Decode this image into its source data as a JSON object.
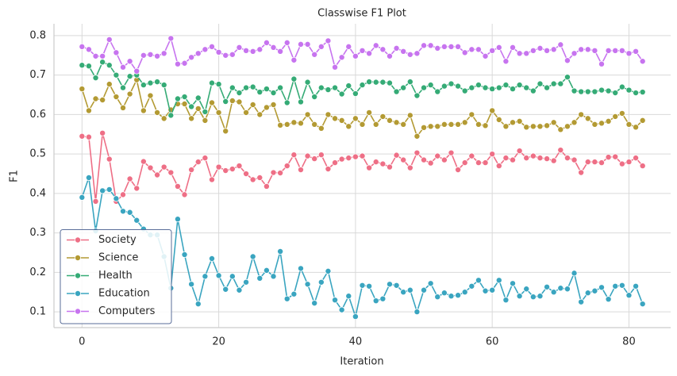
{
  "chart_data": {
    "type": "line",
    "title": "Classwise F1 Plot",
    "x_label": "Iteration",
    "y_label": "F1",
    "x": [
      0,
      1,
      2,
      3,
      4,
      5,
      6,
      7,
      8,
      9,
      10,
      11,
      12,
      13,
      14,
      15,
      16,
      17,
      18,
      19,
      20,
      21,
      22,
      23,
      24,
      25,
      26,
      27,
      28,
      29,
      30,
      31,
      32,
      33,
      34,
      35,
      36,
      37,
      38,
      39,
      40,
      41,
      42,
      43,
      44,
      45,
      46,
      47,
      48,
      49,
      50,
      51,
      52,
      53,
      54,
      55,
      56,
      57,
      58,
      59,
      60,
      61,
      62,
      63,
      64,
      65,
      66,
      67,
      68,
      69,
      70,
      71,
      72,
      73,
      74,
      75,
      76,
      77,
      78,
      79,
      80,
      81,
      82
    ],
    "series": [
      {
        "name": "Society",
        "color": "#ee6f86",
        "values": [
          0.545,
          0.543,
          0.38,
          0.553,
          0.487,
          0.38,
          0.397,
          0.437,
          0.413,
          0.481,
          0.465,
          0.447,
          0.467,
          0.453,
          0.418,
          0.397,
          0.46,
          0.48,
          0.49,
          0.435,
          0.467,
          0.458,
          0.462,
          0.47,
          0.45,
          0.435,
          0.44,
          0.418,
          0.453,
          0.452,
          0.47,
          0.498,
          0.46,
          0.495,
          0.488,
          0.498,
          0.462,
          0.478,
          0.487,
          0.49,
          0.493,
          0.495,
          0.465,
          0.48,
          0.475,
          0.467,
          0.497,
          0.485,
          0.465,
          0.503,
          0.485,
          0.477,
          0.495,
          0.485,
          0.503,
          0.46,
          0.478,
          0.495,
          0.478,
          0.478,
          0.5,
          0.47,
          0.49,
          0.485,
          0.508,
          0.49,
          0.495,
          0.49,
          0.488,
          0.483,
          0.51,
          0.49,
          0.485,
          0.453,
          0.48,
          0.48,
          0.478,
          0.492,
          0.493,
          0.475,
          0.48,
          0.49,
          0.47
        ]
      },
      {
        "name": "Science",
        "color": "#b39a33",
        "values": [
          0.665,
          0.61,
          0.64,
          0.637,
          0.677,
          0.645,
          0.617,
          0.652,
          0.688,
          0.61,
          0.648,
          0.605,
          0.59,
          0.612,
          0.627,
          0.627,
          0.59,
          0.615,
          0.585,
          0.63,
          0.605,
          0.558,
          0.635,
          0.632,
          0.605,
          0.625,
          0.6,
          0.618,
          0.625,
          0.573,
          0.575,
          0.58,
          0.578,
          0.6,
          0.575,
          0.565,
          0.6,
          0.59,
          0.585,
          0.57,
          0.59,
          0.575,
          0.605,
          0.575,
          0.595,
          0.585,
          0.58,
          0.575,
          0.598,
          0.545,
          0.567,
          0.57,
          0.57,
          0.575,
          0.575,
          0.575,
          0.58,
          0.6,
          0.575,
          0.572,
          0.61,
          0.587,
          0.57,
          0.58,
          0.583,
          0.568,
          0.57,
          0.57,
          0.572,
          0.58,
          0.562,
          0.57,
          0.58,
          0.6,
          0.59,
          0.575,
          0.578,
          0.583,
          0.595,
          0.603,
          0.575,
          0.568,
          0.585
        ]
      },
      {
        "name": "Health",
        "color": "#35ab76",
        "values": [
          0.725,
          0.723,
          0.693,
          0.733,
          0.725,
          0.7,
          0.668,
          0.697,
          0.7,
          0.675,
          0.68,
          0.683,
          0.675,
          0.598,
          0.64,
          0.645,
          0.62,
          0.642,
          0.607,
          0.68,
          0.677,
          0.633,
          0.668,
          0.655,
          0.668,
          0.67,
          0.657,
          0.665,
          0.655,
          0.668,
          0.63,
          0.69,
          0.632,
          0.682,
          0.645,
          0.668,
          0.663,
          0.668,
          0.652,
          0.673,
          0.653,
          0.675,
          0.683,
          0.682,
          0.682,
          0.68,
          0.658,
          0.668,
          0.683,
          0.648,
          0.668,
          0.675,
          0.658,
          0.672,
          0.678,
          0.672,
          0.66,
          0.668,
          0.675,
          0.668,
          0.665,
          0.668,
          0.675,
          0.665,
          0.675,
          0.668,
          0.66,
          0.678,
          0.668,
          0.678,
          0.678,
          0.695,
          0.66,
          0.658,
          0.658,
          0.658,
          0.662,
          0.66,
          0.655,
          0.67,
          0.662,
          0.655,
          0.657
        ]
      },
      {
        "name": "Education",
        "color": "#3aa5c0",
        "values": [
          0.39,
          0.44,
          0.305,
          0.407,
          0.41,
          0.387,
          0.355,
          0.352,
          0.332,
          0.31,
          0.295,
          0.295,
          0.24,
          0.16,
          0.335,
          0.245,
          0.17,
          0.12,
          0.19,
          0.235,
          0.192,
          0.157,
          0.19,
          0.155,
          0.175,
          0.24,
          0.185,
          0.205,
          0.19,
          0.253,
          0.133,
          0.145,
          0.21,
          0.17,
          0.122,
          0.175,
          0.203,
          0.13,
          0.105,
          0.14,
          0.088,
          0.167,
          0.165,
          0.128,
          0.133,
          0.17,
          0.167,
          0.15,
          0.155,
          0.1,
          0.155,
          0.172,
          0.138,
          0.148,
          0.14,
          0.142,
          0.15,
          0.165,
          0.18,
          0.153,
          0.155,
          0.18,
          0.13,
          0.172,
          0.14,
          0.158,
          0.138,
          0.14,
          0.163,
          0.15,
          0.16,
          0.158,
          0.198,
          0.125,
          0.148,
          0.153,
          0.162,
          0.132,
          0.165,
          0.167,
          0.142,
          0.165,
          0.12
        ]
      },
      {
        "name": "Computers",
        "color": "#c774ef",
        "values": [
          0.772,
          0.765,
          0.748,
          0.748,
          0.79,
          0.757,
          0.72,
          0.735,
          0.71,
          0.75,
          0.752,
          0.748,
          0.755,
          0.793,
          0.728,
          0.73,
          0.745,
          0.755,
          0.765,
          0.772,
          0.758,
          0.75,
          0.752,
          0.77,
          0.762,
          0.76,
          0.765,
          0.782,
          0.77,
          0.76,
          0.782,
          0.738,
          0.778,
          0.778,
          0.752,
          0.772,
          0.787,
          0.72,
          0.745,
          0.772,
          0.748,
          0.762,
          0.755,
          0.775,
          0.765,
          0.748,
          0.768,
          0.76,
          0.752,
          0.755,
          0.775,
          0.775,
          0.768,
          0.772,
          0.772,
          0.772,
          0.757,
          0.765,
          0.765,
          0.748,
          0.762,
          0.77,
          0.735,
          0.77,
          0.755,
          0.755,
          0.762,
          0.768,
          0.762,
          0.765,
          0.777,
          0.737,
          0.755,
          0.765,
          0.765,
          0.762,
          0.728,
          0.762,
          0.762,
          0.762,
          0.755,
          0.76,
          0.735
        ]
      }
    ],
    "xlim": [
      -4.1,
      86.1
    ],
    "xticks": [
      0,
      20,
      40,
      60,
      80
    ],
    "ylim": [
      0.06,
      0.83
    ],
    "yticks": [
      0.1,
      0.2,
      0.3,
      0.4,
      0.5,
      0.6,
      0.7,
      0.8
    ],
    "grid": true,
    "legend": "lower left"
  }
}
